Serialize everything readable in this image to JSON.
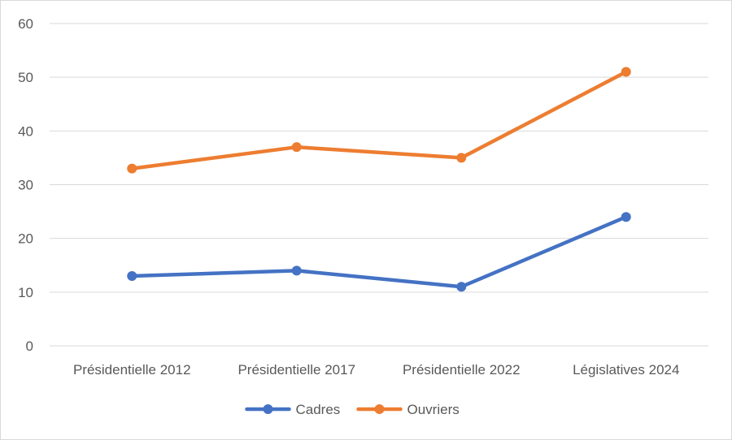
{
  "chart_data": {
    "type": "line",
    "categories": [
      "Présidentielle 2012",
      "Présidentielle 2017",
      "Présidentielle 2022",
      "Législatives 2024"
    ],
    "series": [
      {
        "name": "Cadres",
        "values": [
          13,
          14,
          11,
          24
        ],
        "color": "#4472c4"
      },
      {
        "name": "Ouvriers",
        "values": [
          33,
          37,
          35,
          51
        ],
        "color": "#ed7d31"
      }
    ],
    "ylim": [
      0,
      60
    ],
    "yticks": [
      0,
      10,
      20,
      30,
      40,
      50,
      60
    ],
    "grid": true,
    "gridColor": "#d9d9d9",
    "legend": "bottom",
    "title": "",
    "xlabel": "",
    "ylabel": ""
  }
}
